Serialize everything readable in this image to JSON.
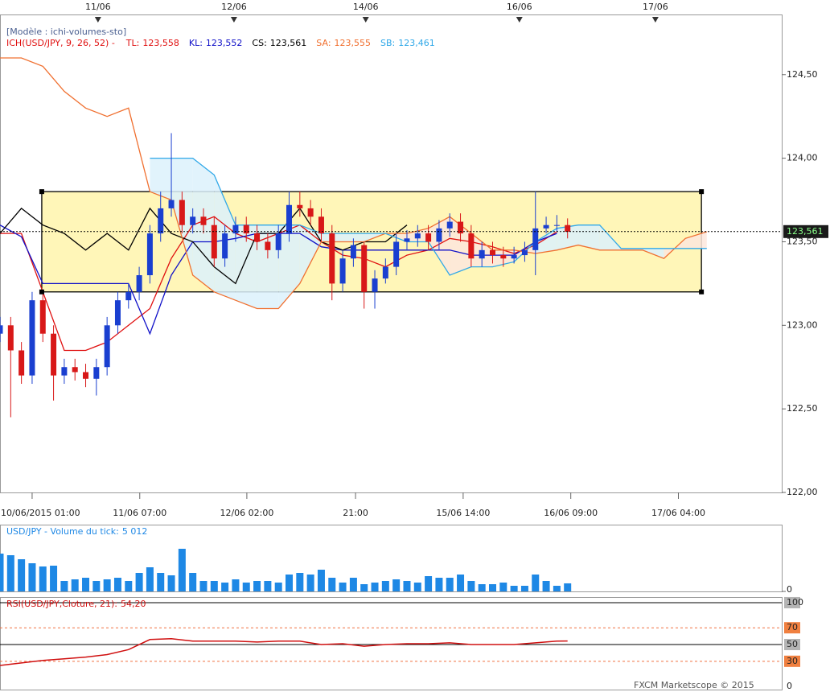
{
  "chart_data": [
    {
      "type": "candlestick",
      "title": "[Modèle : ichi-volumes-sto]",
      "legend_title": "ICH(USD/JPY, 9, 26, 52) -",
      "x": [
        0,
        2,
        4,
        6,
        8,
        10,
        12,
        14,
        16,
        18,
        20,
        22,
        24,
        26,
        28,
        30,
        32,
        34,
        36,
        38,
        40,
        42,
        44,
        46,
        48,
        50,
        52,
        54,
        56,
        58,
        60,
        62,
        64,
        66,
        68,
        70,
        72,
        74,
        76,
        78,
        80,
        82,
        84,
        86,
        88,
        90,
        92,
        94,
        96,
        98,
        100,
        102,
        104,
        106
      ],
      "open": [
        122.95,
        123.0,
        122.85,
        122.7,
        123.15,
        122.95,
        122.7,
        122.75,
        122.72,
        122.68,
        122.75,
        123.0,
        123.15,
        123.2,
        123.3,
        123.55,
        123.7,
        123.75,
        123.6,
        123.65,
        123.6,
        123.4,
        123.55,
        123.6,
        123.55,
        123.5,
        123.45,
        123.55,
        123.72,
        123.7,
        123.65,
        123.55,
        123.25,
        123.4,
        123.48,
        123.2,
        123.28,
        123.35,
        123.5,
        123.52,
        123.55,
        123.5,
        123.58,
        123.62,
        123.55,
        123.4,
        123.45,
        123.42,
        123.4,
        123.42,
        123.45,
        123.58,
        123.6,
        123.6
      ],
      "high": [
        123.05,
        123.05,
        122.9,
        123.2,
        123.2,
        123.0,
        122.8,
        122.8,
        122.77,
        122.8,
        123.05,
        123.2,
        123.25,
        123.35,
        123.6,
        123.8,
        124.15,
        123.8,
        123.7,
        123.7,
        123.65,
        123.6,
        123.65,
        123.65,
        123.6,
        123.55,
        123.6,
        123.8,
        123.8,
        123.75,
        123.7,
        123.6,
        123.45,
        123.52,
        123.5,
        123.33,
        123.4,
        123.55,
        123.57,
        123.6,
        123.6,
        123.63,
        123.67,
        123.67,
        123.6,
        123.5,
        123.5,
        123.47,
        123.47,
        123.5,
        123.8,
        123.65,
        123.66,
        123.64
      ],
      "low": [
        122.9,
        122.45,
        122.65,
        122.65,
        122.9,
        122.55,
        122.65,
        122.67,
        122.63,
        122.58,
        122.7,
        122.95,
        123.1,
        123.15,
        123.25,
        123.5,
        123.65,
        123.55,
        123.55,
        123.55,
        123.35,
        123.35,
        123.5,
        123.5,
        123.45,
        123.4,
        123.4,
        123.5,
        123.65,
        123.6,
        123.5,
        123.15,
        123.2,
        123.35,
        123.1,
        123.1,
        123.25,
        123.3,
        123.45,
        123.47,
        123.45,
        123.45,
        123.53,
        123.5,
        123.35,
        123.35,
        123.37,
        123.35,
        123.37,
        123.38,
        123.3,
        123.55,
        123.56,
        123.52
      ],
      "close": [
        123.0,
        122.85,
        122.7,
        123.15,
        122.95,
        122.7,
        122.75,
        122.72,
        122.68,
        122.75,
        123.0,
        123.15,
        123.2,
        123.3,
        123.55,
        123.7,
        123.75,
        123.6,
        123.65,
        123.6,
        123.4,
        123.55,
        123.6,
        123.55,
        123.5,
        123.45,
        123.55,
        123.72,
        123.7,
        123.65,
        123.55,
        123.25,
        123.4,
        123.48,
        123.2,
        123.28,
        123.35,
        123.5,
        123.52,
        123.55,
        123.5,
        123.58,
        123.62,
        123.55,
        123.4,
        123.45,
        123.42,
        123.4,
        123.42,
        123.45,
        123.58,
        123.6,
        123.6,
        123.56
      ],
      "up_color": "#1a3fd0",
      "down_color": "#d81818",
      "series": [
        {
          "name": "TL:",
          "color": "#e01010",
          "last_value": {
            "value": 123.558,
            "label": "123,558"
          },
          "x": [
            0,
            4,
            8,
            12,
            16,
            20,
            24,
            28,
            32,
            36,
            40,
            44,
            48,
            52,
            56,
            60,
            64,
            68,
            72,
            76,
            80,
            84,
            88,
            92,
            96,
            100,
            104
          ],
          "values": [
            123.55,
            123.55,
            123.2,
            122.85,
            122.85,
            122.9,
            123.0,
            123.1,
            123.4,
            123.6,
            123.65,
            123.55,
            123.5,
            123.55,
            123.6,
            123.5,
            123.42,
            123.4,
            123.35,
            123.42,
            123.45,
            123.52,
            123.5,
            123.47,
            123.43,
            123.48,
            123.56
          ]
        },
        {
          "name": "KL:",
          "color": "#1010c8",
          "last_value": {
            "value": 123.552,
            "label": "123,552"
          },
          "x": [
            0,
            4,
            8,
            12,
            16,
            20,
            24,
            28,
            32,
            36,
            40,
            44,
            48,
            52,
            56,
            60,
            64,
            68,
            72,
            76,
            80,
            84,
            88,
            92,
            96,
            100,
            104
          ],
          "values": [
            123.6,
            123.53,
            123.25,
            123.25,
            123.25,
            123.25,
            123.25,
            122.95,
            123.3,
            123.5,
            123.5,
            123.52,
            123.55,
            123.55,
            123.55,
            123.47,
            123.45,
            123.45,
            123.45,
            123.45,
            123.45,
            123.45,
            123.42,
            123.42,
            123.42,
            123.5,
            123.55
          ]
        },
        {
          "name": "CS:",
          "color": "#000000",
          "last_value": {
            "value": 123.561,
            "label": "123,561"
          },
          "x": [
            0,
            4,
            8,
            12,
            16,
            20,
            24,
            28,
            32,
            36,
            40,
            44,
            48,
            52,
            56,
            60,
            64,
            68,
            72,
            76
          ],
          "values": [
            123.55,
            123.7,
            123.6,
            123.55,
            123.45,
            123.55,
            123.45,
            123.7,
            123.55,
            123.5,
            123.35,
            123.25,
            123.55,
            123.55,
            123.7,
            123.5,
            123.45,
            123.5,
            123.5,
            123.6
          ]
        },
        {
          "name": "SA:",
          "color": "#f07030",
          "last_value": {
            "value": 123.555,
            "label": "123,555"
          },
          "x": [
            0,
            4,
            8,
            12,
            16,
            20,
            24,
            28,
            32,
            36,
            40,
            44,
            48,
            52,
            56,
            60,
            64,
            68,
            72,
            76,
            80,
            84,
            88,
            92,
            96,
            100,
            104,
            108,
            112,
            116,
            120,
            124,
            128,
            132
          ],
          "values": [
            124.6,
            124.6,
            124.55,
            124.4,
            124.3,
            124.25,
            124.3,
            123.8,
            123.75,
            123.3,
            123.2,
            123.15,
            123.1,
            123.1,
            123.25,
            123.5,
            123.5,
            123.5,
            123.55,
            123.55,
            123.58,
            123.65,
            123.55,
            123.45,
            123.45,
            123.43,
            123.45,
            123.48,
            123.45,
            123.45,
            123.45,
            123.4,
            123.52,
            123.56
          ]
        },
        {
          "name": "SB:",
          "color": "#30a8e8",
          "last_value": {
            "value": 123.461,
            "label": "123,461"
          },
          "x": [
            0,
            4,
            8,
            12,
            16,
            20,
            24,
            28,
            32,
            36,
            40,
            44,
            48,
            52,
            56,
            60,
            64,
            68,
            72,
            76,
            80,
            84,
            88,
            92,
            96,
            100,
            104,
            108,
            112,
            116,
            120,
            124,
            128,
            132
          ],
          "values": [
            null,
            null,
            null,
            null,
            null,
            null,
            null,
            124.0,
            124.0,
            124.0,
            123.9,
            123.6,
            123.6,
            123.6,
            123.6,
            123.55,
            123.55,
            123.55,
            123.55,
            123.5,
            123.5,
            123.3,
            123.35,
            123.35,
            123.38,
            123.5,
            123.58,
            123.6,
            123.6,
            123.46,
            123.46,
            123.46,
            123.46,
            123.46
          ]
        }
      ],
      "cloud_colors": [
        "#fde6dc",
        "#dcf1fb"
      ],
      "highlight_box": {
        "x": [
          7.8,
          131
        ],
        "y": [
          123.2,
          123.8
        ],
        "color": "#fff6b8"
      },
      "last_price": {
        "value": 123.561,
        "label": "123,561"
      },
      "xlim": [
        0,
        146
      ],
      "ylim": [
        122,
        124.86
      ],
      "yticks": [
        {
          "value": 122,
          "label": "122,00"
        },
        {
          "value": 122.5,
          "label": "122,50"
        },
        {
          "value": 123,
          "label": "123,00"
        },
        {
          "value": 123.5,
          "label": "123,50"
        },
        {
          "value": 124,
          "label": "124,00"
        },
        {
          "value": 124.5,
          "label": "124,50"
        }
      ],
      "xticks": [
        {
          "value": 6.0,
          "label": "10/06/2015 01:00"
        },
        {
          "value": 26.1,
          "label": "11/06 07:00"
        },
        {
          "value": 46.1,
          "label": "12/06 02:00"
        },
        {
          "value": 66.4,
          "label": "21:00"
        },
        {
          "value": 86.5,
          "label": "15/06 14:00"
        },
        {
          "value": 106.6,
          "label": "16/06 09:00"
        },
        {
          "value": 126.7,
          "label": "17/06 04:00"
        }
      ],
      "x2ticks": [
        {
          "value": 18.3,
          "label": "11/06"
        },
        {
          "value": 43.7,
          "label": "12/06"
        },
        {
          "value": 68.3,
          "label": "14/06"
        },
        {
          "value": 97,
          "label": "16/06"
        },
        {
          "value": 122.4,
          "label": "17/06"
        }
      ]
    },
    {
      "type": "bar",
      "title": "USD/JPY - Volume du tick:",
      "title_value": {
        "value": 5012,
        "label": "5 012"
      },
      "color": "#1e88e5",
      "x": [
        0,
        2,
        4,
        6,
        8,
        10,
        12,
        14,
        16,
        18,
        20,
        22,
        24,
        26,
        28,
        30,
        32,
        34,
        36,
        38,
        40,
        42,
        44,
        46,
        48,
        50,
        52,
        54,
        56,
        58,
        60,
        62,
        64,
        66,
        68,
        70,
        72,
        74,
        76,
        78,
        80,
        82,
        84,
        86,
        88,
        90,
        92,
        94,
        96,
        98,
        100,
        102,
        104,
        106
      ],
      "values": [
        23500,
        22500,
        20000,
        17500,
        15500,
        16000,
        6500,
        7500,
        8500,
        6500,
        7500,
        8500,
        6500,
        11500,
        15000,
        11500,
        10000,
        26500,
        11500,
        6500,
        6500,
        5500,
        7500,
        5500,
        6500,
        6500,
        5500,
        10500,
        11500,
        10500,
        13500,
        8500,
        5500,
        8500,
        4500,
        5500,
        6500,
        7500,
        6500,
        5500,
        9500,
        8500,
        8500,
        10500,
        6500,
        4500,
        4500,
        5500,
        3500,
        3500,
        10500,
        6500,
        3500,
        5012
      ],
      "xlim": [
        0,
        146
      ],
      "ylim": [
        0,
        41500
      ],
      "yticks": [
        0
      ]
    },
    {
      "type": "line",
      "title": "RSI(USD/JPY,Cloture, 21):",
      "title_value": {
        "value": 54.2,
        "label": "54,20"
      },
      "color": "#d01010",
      "x": [
        0,
        4,
        8,
        12,
        16,
        20,
        24,
        28,
        32,
        36,
        40,
        44,
        48,
        52,
        56,
        60,
        64,
        68,
        72,
        76,
        80,
        84,
        88,
        92,
        96,
        100,
        104,
        106
      ],
      "values": [
        25,
        28,
        31,
        33,
        35,
        38,
        44,
        56,
        57,
        54,
        54,
        54,
        53,
        54,
        54,
        50,
        51,
        48,
        50,
        51,
        51,
        52,
        50,
        50,
        50,
        52,
        54,
        54.2
      ],
      "xlim": [
        0,
        146
      ],
      "ylim": [
        -3.8,
        106.7
      ],
      "yticks": [
        100,
        70,
        50,
        30,
        0
      ],
      "level_fills": [
        "#b4b4b4",
        "#f08040",
        "#b4b4b4",
        "#f08040",
        "#ffffff"
      ],
      "level_line_colors": [
        "#000000",
        "#f07040",
        "#000000",
        "#f07040",
        "#000000"
      ],
      "level_styles": [
        "solid",
        "dashed",
        "solid",
        "dashed",
        "none"
      ]
    }
  ],
  "footer": "FXCM Marketscope © 2015"
}
